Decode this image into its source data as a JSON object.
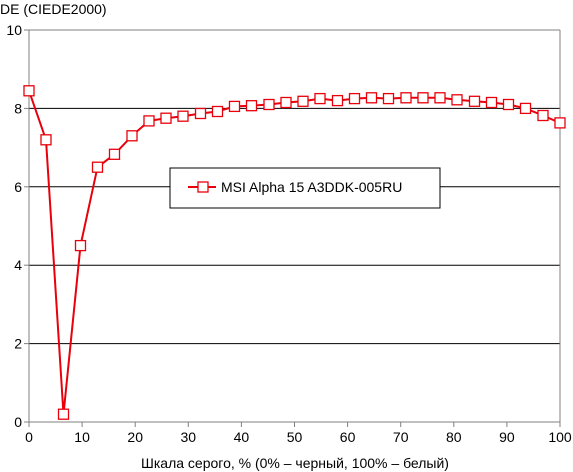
{
  "chart_data": {
    "type": "line",
    "ylabel": "DE (CIEDE2000)",
    "xlabel": "Шкала серого, % (0% – черный, 100% – белый)",
    "xlim": [
      0,
      100
    ],
    "ylim": [
      0,
      10
    ],
    "xticks": [
      "0",
      "10",
      "20",
      "30",
      "40",
      "50",
      "60",
      "70",
      "80",
      "90",
      "100"
    ],
    "yticks": [
      "0",
      "2",
      "4",
      "6",
      "8",
      "10"
    ],
    "grid": "horizontal",
    "legend_position": "center",
    "colors": {
      "series": "#e8000b",
      "grid": "#000000",
      "axis": "#808080"
    },
    "series": [
      {
        "name": "MSI Alpha 15 A3DDK-005RU",
        "marker": "square",
        "x": [
          0,
          3.2,
          6.5,
          9.7,
          12.9,
          16.1,
          19.4,
          22.6,
          25.8,
          29.0,
          32.3,
          35.5,
          38.7,
          41.9,
          45.2,
          48.4,
          51.6,
          54.8,
          58.1,
          61.3,
          64.5,
          67.7,
          71.0,
          74.2,
          77.4,
          80.6,
          83.9,
          87.1,
          90.3,
          93.5,
          96.8,
          100
        ],
        "values": [
          8.45,
          7.2,
          0.2,
          4.5,
          6.5,
          6.83,
          7.3,
          7.68,
          7.75,
          7.8,
          7.87,
          7.92,
          8.05,
          8.07,
          8.1,
          8.15,
          8.18,
          8.25,
          8.2,
          8.25,
          8.27,
          8.25,
          8.27,
          8.27,
          8.27,
          8.22,
          8.18,
          8.15,
          8.1,
          8.0,
          7.82,
          7.63
        ]
      }
    ]
  }
}
